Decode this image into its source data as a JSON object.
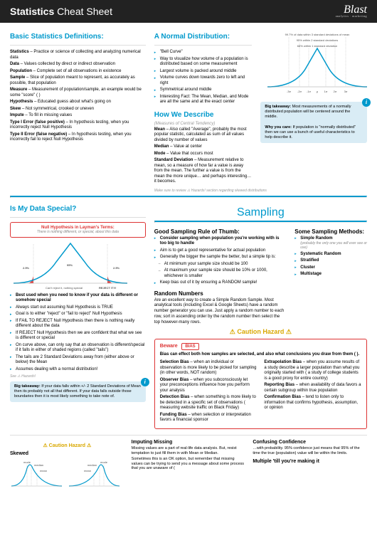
{
  "header": {
    "title_bold": "Statistics",
    "title_light": "Cheat Sheet",
    "logo_text": "Blast",
    "logo_sub": "analytics · marketing"
  },
  "colors": {
    "accent": "#0099cc",
    "danger": "#d33",
    "warn": "#d9a800",
    "callout_bg": "#d9ecf5"
  },
  "defs": {
    "heading": "Basic Statistics Definitions:",
    "items": [
      {
        "term": "Statistics",
        "def": " – Practice or science of collecting and analyzing numerical data"
      },
      {
        "term": "Data",
        "def": " – Values collected by direct or indirect observation"
      },
      {
        "term": "Population",
        "def": " – Complete set of all observations in existence"
      },
      {
        "term": "Sample",
        "def": " – Slice of population meant to represent, as accurately as possible, that population"
      },
      {
        "term": "Measure",
        "def": " – Measurement of population/sample, an example would be some \"score\" ( )"
      },
      {
        "term": "Hypothesis",
        "def": " – Educated guess about what's going on"
      },
      {
        "term": "Skew",
        "def": " – Not symmetrical, crooked or uneven"
      },
      {
        "term": "Impute",
        "def": " – To fill in missing values"
      },
      {
        "term": "Type I Error (false positive)",
        "def": " – In hypothesis testing, when you incorrectly reject Null Hypothesis"
      },
      {
        "term": "Type II Error (false negative)",
        "def": " – In hypothesis testing, when you incorrectly fail to reject Null Hypothesis"
      }
    ]
  },
  "normal": {
    "heading": "A Normal Distribution:",
    "bullets": [
      "\"Bell Curve\"",
      "Way to visualize how volume of a population is distributed based on some measurement",
      "Largest volume is packed around middle",
      "Volume curves down towards zero to left and right",
      "Symmetrical around middle",
      "Interesting Fact: The Mean, Median, and Mode are all the same and at the exact center"
    ],
    "curve_annot": {
      "top": "99.7% of data within 3 standard deviations of mean",
      "mid": "95% within 2 standard deviations",
      "inner": "68% within 1 standard deviation"
    },
    "takeaway1_b": "Big takeaway:",
    "takeaway1": " Most measurements of a normally distributed population will be centered around the middle.",
    "takeaway2_b": "Why you care:",
    "takeaway2": " If population is \"normally distributed\" then we can use a bunch of useful characteristics to help describe it."
  },
  "describe": {
    "heading": "How We Describe",
    "sub": "(Measures of Central Tendency)",
    "items": [
      {
        "term": "Mean",
        "def": " – Also called \"Average\", probably the most popular statistic, calculated as sum of all values divided by number of values"
      },
      {
        "term": "Median",
        "def": " – Value at center"
      },
      {
        "term": "Mode",
        "def": " – Value that occurs most"
      },
      {
        "term": "Standard Deviation",
        "def": " – Measurement relative to mean, so a measure of how far a value is away from the mean. The further a value is from the mean the more unique… and perhaps interesting… it becomes."
      }
    ],
    "foot": "Make sure to review ⚠ Hazards! section regarding skewed distributions"
  },
  "special": {
    "heading": "Is My Data Special?",
    "null_title": "Null Hypothesis in Layman's Terms:",
    "null_sub": "There is nothing different, or special, about this data",
    "curve_left": "2.5%",
    "curve_mid": "95%",
    "curve_right": "2.5%",
    "reject_left": "Can't reject it, nothing special",
    "reject_right": "REJECT IT!!!",
    "bullets": [
      "Best used when you need to know if your data is different or somehow special",
      "Always start out assuming Null Hypothesis is TRUE",
      "Goal is to either \"reject\" or \"fail to reject\" Null Hypothesis",
      "If FAIL TO REJECT Null Hypothesis then there is nothing really different about the data",
      "If REJECT Null Hypothesis then we are confident that what we see is different or special",
      "On curve above, can only say that an observation is different/special if it falls in either of shaded regions (called \"tails\")",
      "The tails are 2 Standard Deviations away from (either above or below) the Mean",
      "Assumes dealing with a normal distribution!"
    ],
    "see": "See ⚠ Hazards!",
    "callout_b": "Big takeaway:",
    "callout": " If your data falls within +/- 2 Standard Deviations of Mean then its probably not all that different. If your data falls outside those boundaries then it is most likely something to take note of."
  },
  "sampling": {
    "heading": "Sampling",
    "rule_head": "Good Sampling Rule of Thumb:",
    "rule_bullets": [
      "Consider sampling when population you're working with is too big to handle",
      "Aim is to get a good representative for actual population",
      "Generally the bigger the sample the better, but a simple tip is:"
    ],
    "rule_sub": [
      "At minimum your sample size should be 100",
      "At maximum your sample size should be 10% or 1000, whichever is smaller"
    ],
    "rule_last": "Keep bias out of it by ensuring a RANDOM sample!",
    "methods_head": "Some Sampling Methods:",
    "methods": [
      "Simple Random",
      "Systematic Random",
      "Stratified",
      "Cluster",
      "Multistage"
    ],
    "methods_note": "(probably the only one you will ever see or use)",
    "rand_head": "Random Numbers",
    "rand_body": "Are an excellent way to create a Simple Random Sample. Most analytical tools (including Excel & Google Sheets) have a random number generator you can use. Just apply a random number to each row, sort in ascending order by the random number then select the top however-many rows."
  },
  "hazard": {
    "head": "⚠ Caution Hazard ⚠",
    "beware": "Beware",
    "bias": "BIAS",
    "lead": "Bias can effect both how samples are selected, and also what conclusions you draw from them ( ).",
    "left": [
      {
        "t": "Selection Bias",
        "d": " – when an individual or observation is more likely to be picked for sampling (in other words, NOT random)"
      },
      {
        "t": "Observer Bias",
        "d": " – when you subconsciously let your preconceptions influence how you perform your analysis"
      },
      {
        "t": "Detection Bias",
        "d": " – when something is more likely to be detected in a specific set of observations ( measuring website traffic on Black Friday)"
      },
      {
        "t": "Funding Bias",
        "d": " – when selection or interpretation favors a financial sponsor"
      }
    ],
    "right": [
      {
        "t": "Extrapolation Bias",
        "d": " – when you assume results of a study describe a larger population than what you originally started with ( a study of college students is a good proxy for entire country)"
      },
      {
        "t": "Reporting Bias",
        "d": " – when availability of data favors a certain subgroup within true population"
      },
      {
        "t": "Confirmation Bias",
        "d": " – tend to listen only to information that confirms hypothesis, assumption, or opinion"
      }
    ]
  },
  "skewed": {
    "heading": "Skewed",
    "labels": [
      "mode",
      "median",
      "mean"
    ],
    "hazard": "⚠ Caution Hazard ⚠"
  },
  "imputing": {
    "heading": "Imputing Missing",
    "p1": "Missing values are a part of real-life data analysis. But, resist temptation to just fill them in with Mean or Median.",
    "p2": "Sometimes this is an OK option, but remember that missing values can be trying to send you a message about some process that you are unaware of ("
  },
  "confidence": {
    "heading": "Confusing Confidence",
    "p1": "…with probability. 95% confidence just means that 95% of the time the true (population) value will be within the limits.",
    "multi": "Multiple 'till you're making it"
  }
}
